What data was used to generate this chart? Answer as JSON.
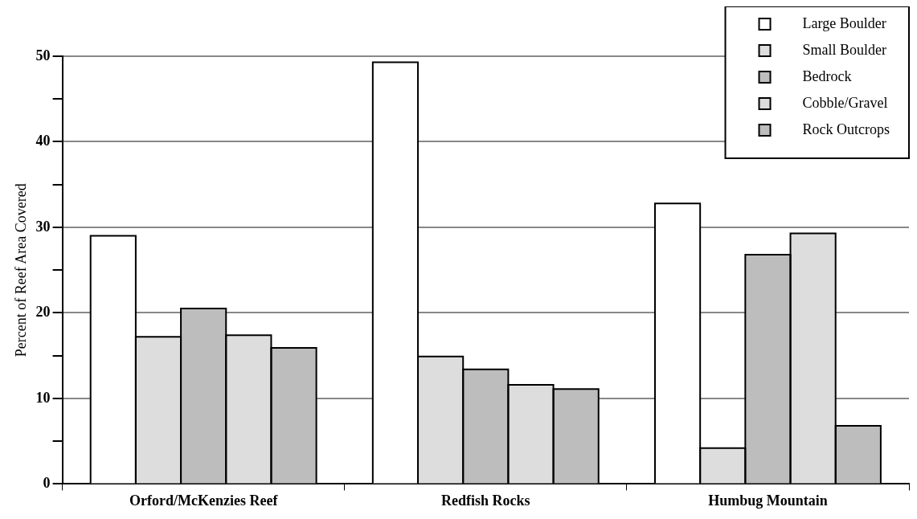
{
  "chart_data": {
    "type": "bar",
    "ylabel": "Percent of Reef Area Covered",
    "categories": [
      "Orford/McKenzies Reef",
      "Redfish Rocks",
      "Humbug Mountain"
    ],
    "series": [
      {
        "name": "Large Boulder",
        "color": "#ffffff",
        "values": [
          29.0,
          49.3,
          32.8
        ]
      },
      {
        "name": "Small Boulder",
        "color": "#dddddd",
        "values": [
          17.2,
          14.9,
          4.2
        ]
      },
      {
        "name": "Bedrock",
        "color": "#bdbdbd",
        "values": [
          20.5,
          13.4,
          26.8
        ]
      },
      {
        "name": "Cobble/Gravel",
        "color": "#dddddd",
        "values": [
          17.4,
          11.6,
          29.3
        ]
      },
      {
        "name": "Rock Outcrops",
        "color": "#bdbdbd",
        "values": [
          15.9,
          11.1,
          6.8
        ]
      }
    ],
    "ylim": [
      0,
      50
    ],
    "yticks": [
      0,
      {
        "value": 5,
        "label": null
      },
      10,
      {
        "value": 15,
        "label": null
      },
      20,
      {
        "value": 25,
        "label": null
      },
      30,
      {
        "value": 35,
        "label": null
      },
      40,
      {
        "value": 45,
        "label": null
      },
      50
    ],
    "grid": "y",
    "legend": "top right"
  }
}
